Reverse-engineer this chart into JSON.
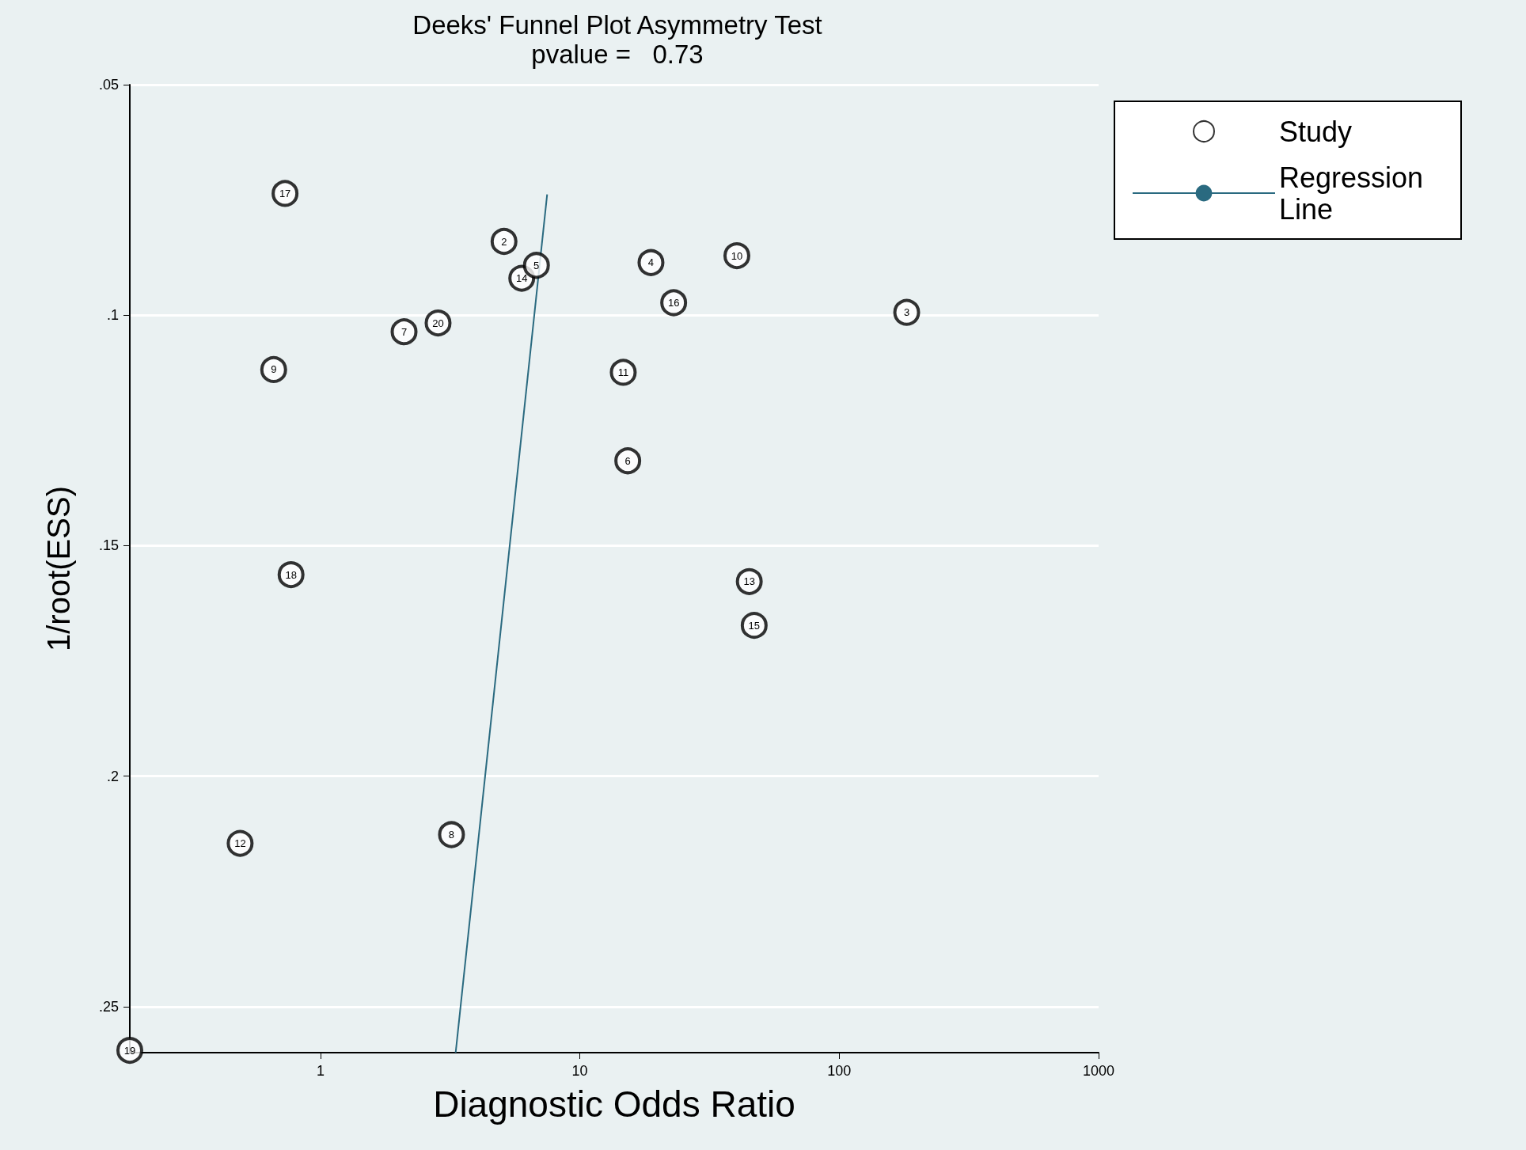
{
  "chart_data": {
    "type": "scatter",
    "title": "Deeks' Funnel Plot Asymmetry Test",
    "subtitle": "pvalue =   0.73",
    "xlabel": "Diagnostic Odds Ratio",
    "ylabel": "1/root(ESS)",
    "log": "x",
    "grid": "y",
    "legend": "top right",
    "xlim": [
      0.184,
      1000
    ],
    "xticks": [
      1,
      10,
      100,
      1000
    ],
    "ylim": [
      0.26,
      0.05
    ],
    "yticks": [
      {
        "value": 0.05,
        "label": ".05"
      },
      {
        "value": 0.1,
        "label": ".1"
      },
      {
        "value": 0.15,
        "label": ".15"
      },
      {
        "value": 0.2,
        "label": ".2"
      },
      {
        "value": 0.25,
        "label": ".25"
      }
    ],
    "series": [
      {
        "name": "Study",
        "marker": "circle",
        "color": "#000000",
        "x": [
          0.73,
          5.1,
          5.97,
          6.8,
          18.8,
          40.3,
          23,
          182,
          2.1,
          2.84,
          0.66,
          14.7,
          15.3,
          0.77,
          45,
          47,
          0.49,
          3.2,
          0.184
        ],
        "values": [
          0.0736,
          0.084,
          0.092,
          0.0892,
          0.0886,
          0.0871,
          0.0973,
          0.0994,
          0.1036,
          0.1017,
          0.1118,
          0.1124,
          0.1316,
          0.1563,
          0.1578,
          0.1673,
          0.2146,
          0.2127,
          0.2595
        ]
      },
      {
        "name": "Regression Line",
        "type": "line",
        "color": "#2a6a80",
        "line_style": "solid",
        "marker": "none",
        "x": [
          3.32,
          7.48
        ],
        "values": [
          0.26,
          0.0738
        ]
      }
    ],
    "annotations": [
      {
        "text": "17",
        "x": 0.73,
        "y": 0.0736
      },
      {
        "text": "2",
        "x": 5.1,
        "y": 0.084
      },
      {
        "text": "14",
        "x": 5.97,
        "y": 0.092
      },
      {
        "text": "5",
        "x": 6.8,
        "y": 0.0892
      },
      {
        "text": "4",
        "x": 18.8,
        "y": 0.0886
      },
      {
        "text": "10",
        "x": 40.3,
        "y": 0.0871
      },
      {
        "text": "16",
        "x": 23,
        "y": 0.0973
      },
      {
        "text": "3",
        "x": 182,
        "y": 0.0994
      },
      {
        "text": "7",
        "x": 2.1,
        "y": 0.1036
      },
      {
        "text": "20",
        "x": 2.84,
        "y": 0.1017
      },
      {
        "text": "9",
        "x": 0.66,
        "y": 0.1118
      },
      {
        "text": "11",
        "x": 14.7,
        "y": 0.1124
      },
      {
        "text": "6",
        "x": 15.3,
        "y": 0.1316
      },
      {
        "text": "18",
        "x": 0.77,
        "y": 0.1563
      },
      {
        "text": "13",
        "x": 45,
        "y": 0.1578
      },
      {
        "text": "15",
        "x": 47,
        "y": 0.1673
      },
      {
        "text": "12",
        "x": 0.49,
        "y": 0.2146
      },
      {
        "text": "8",
        "x": 3.2,
        "y": 0.2127
      },
      {
        "text": "19",
        "x": 0.184,
        "y": 0.2595
      }
    ]
  }
}
